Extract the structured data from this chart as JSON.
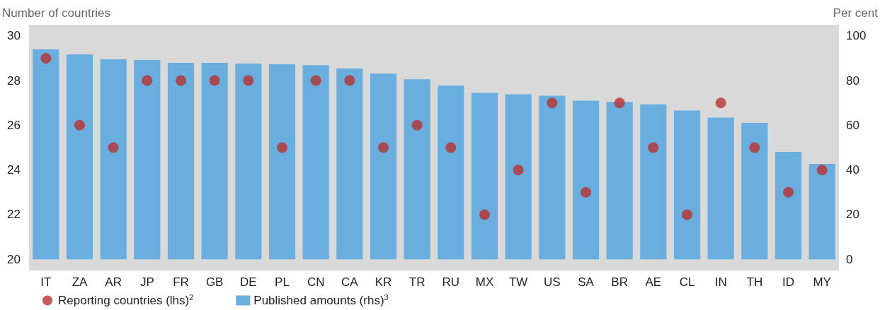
{
  "chart_data": {
    "type": "bar",
    "ylabel": "Number of countries",
    "y2label": "Per cent",
    "categories": [
      "IT",
      "ZA",
      "AR",
      "JP",
      "FR",
      "GB",
      "DE",
      "PL",
      "CN",
      "CA",
      "KR",
      "TR",
      "RU",
      "MX",
      "TW",
      "US",
      "SA",
      "BR",
      "AE",
      "CL",
      "IN",
      "TH",
      "ID",
      "MY"
    ],
    "series": [
      {
        "name": "Reporting countries (lhs)$^{2}$",
        "type": "scatter",
        "color": "#b8312f",
        "marker": "circle",
        "values": [
          29,
          26,
          25,
          28,
          28,
          28,
          28,
          25,
          28,
          28,
          25,
          26,
          25,
          22,
          24,
          27,
          23,
          27,
          25,
          22,
          27,
          25,
          23,
          24
        ]
      },
      {
        "name": "Published amounts (rhs)$^{3}$",
        "axis": "y2",
        "color": "#6aaee0",
        "values": [
          94,
          91.7,
          89.5,
          89.2,
          87.9,
          87.9,
          87.6,
          87.3,
          86.9,
          85.4,
          83.1,
          80.6,
          77.7,
          74.5,
          73.9,
          73.2,
          71,
          70.4,
          69.4,
          66.6,
          63.4,
          61.1,
          48.1,
          42.7
        ]
      }
    ],
    "ylim": [
      19.5,
      30.5
    ],
    "yticks": [
      20,
      22,
      24,
      26,
      28,
      30
    ],
    "y2lim": [
      -5,
      105
    ],
    "y2ticks": [
      0,
      20,
      40,
      60,
      80,
      100
    ],
    "grid": false,
    "legend": "bottom left"
  }
}
